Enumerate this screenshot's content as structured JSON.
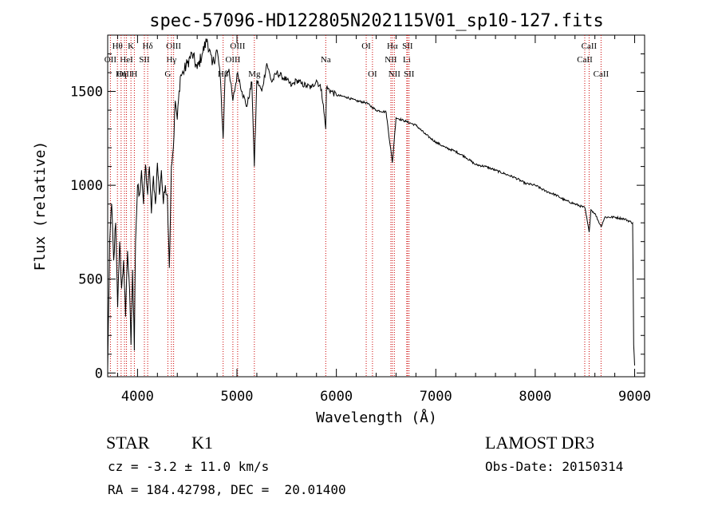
{
  "chart_data": {
    "type": "line",
    "title": "spec-57096-HD122805N202115V01_sp10-127.fits",
    "xlabel": "Wavelength (Å)",
    "ylabel": "Flux (relative)",
    "xlim": [
      3700,
      9100
    ],
    "ylim": [
      -20,
      1800
    ],
    "xticks": [
      4000,
      5000,
      6000,
      7000,
      8000,
      9000
    ],
    "yticks": [
      0,
      500,
      1000,
      1500
    ],
    "line_color": "#000000",
    "marker_color": "#cc0000",
    "series": [
      {
        "name": "flux",
        "x": [
          3700,
          3720,
          3740,
          3760,
          3780,
          3800,
          3820,
          3840,
          3860,
          3880,
          3900,
          3920,
          3934,
          3950,
          3968,
          3980,
          4000,
          4020,
          4040,
          4060,
          4080,
          4102,
          4120,
          4140,
          4160,
          4180,
          4200,
          4220,
          4240,
          4260,
          4280,
          4300,
          4320,
          4340,
          4360,
          4380,
          4400,
          4430,
          4460,
          4500,
          4550,
          4600,
          4650,
          4700,
          4750,
          4800,
          4830,
          4861,
          4880,
          4920,
          4959,
          5007,
          5050,
          5100,
          5150,
          5175,
          5200,
          5250,
          5300,
          5350,
          5400,
          5450,
          5500,
          5550,
          5600,
          5650,
          5700,
          5750,
          5800,
          5850,
          5893,
          5900,
          5950,
          6000,
          6100,
          6200,
          6300,
          6400,
          6500,
          6563,
          6600,
          6700,
          6800,
          6900,
          7000,
          7100,
          7200,
          7300,
          7400,
          7500,
          7600,
          7700,
          7800,
          7900,
          8000,
          8100,
          8200,
          8300,
          8400,
          8500,
          8542,
          8560,
          8600,
          8662,
          8700,
          8800,
          8900,
          8980,
          8990,
          9000
        ],
        "y": [
          20,
          700,
          900,
          600,
          800,
          350,
          700,
          450,
          600,
          300,
          650,
          450,
          150,
          550,
          120,
          700,
          1000,
          950,
          1080,
          900,
          1110,
          950,
          1100,
          850,
          1050,
          900,
          1120,
          950,
          1080,
          900,
          1000,
          950,
          560,
          1100,
          1200,
          1450,
          1350,
          1580,
          1600,
          1650,
          1700,
          1620,
          1700,
          1780,
          1640,
          1720,
          1600,
          1250,
          1580,
          1620,
          1450,
          1600,
          1500,
          1420,
          1550,
          1100,
          1560,
          1500,
          1650,
          1550,
          1600,
          1580,
          1560,
          1530,
          1560,
          1540,
          1530,
          1520,
          1560,
          1510,
          1300,
          1520,
          1500,
          1480,
          1470,
          1450,
          1440,
          1400,
          1390,
          1120,
          1360,
          1340,
          1320,
          1270,
          1230,
          1200,
          1180,
          1150,
          1110,
          1100,
          1080,
          1060,
          1040,
          1010,
          1000,
          970,
          950,
          920,
          900,
          880,
          750,
          870,
          850,
          780,
          830,
          830,
          820,
          800,
          150,
          40
        ]
      }
    ],
    "lines": [
      {
        "label": "Hθ",
        "wavelength": 3798,
        "row": 1
      },
      {
        "label": "OII",
        "wavelength": 3727,
        "row": 2
      },
      {
        "label": "OIII",
        "wavelength": 3869,
        "row": 3
      },
      {
        "label": "K",
        "wavelength": 3934,
        "row": 1
      },
      {
        "label": "HeI",
        "wavelength": 3889,
        "row": 2
      },
      {
        "label": "Hη",
        "wavelength": 3835,
        "row": 3
      },
      {
        "label": "Hδ",
        "wavelength": 4102,
        "row": 1
      },
      {
        "label": "SII",
        "wavelength": 4069,
        "row": 2
      },
      {
        "label": "H",
        "wavelength": 3968,
        "row": 3
      },
      {
        "label": "OIII",
        "wavelength": 4363,
        "row": 1
      },
      {
        "label": "Hγ",
        "wavelength": 4341,
        "row": 2
      },
      {
        "label": "G",
        "wavelength": 4305,
        "row": 3
      },
      {
        "label": "OIII",
        "wavelength": 5007,
        "row": 1
      },
      {
        "label": "OIII",
        "wavelength": 4959,
        "row": 2
      },
      {
        "label": "Hβ",
        "wavelength": 4861,
        "row": 3
      },
      {
        "label": "Mg",
        "wavelength": 5175,
        "row": 3
      },
      {
        "label": "Na",
        "wavelength": 5893,
        "row": 2
      },
      {
        "label": "OI",
        "wavelength": 6300,
        "row": 1
      },
      {
        "label": "OI",
        "wavelength": 6363,
        "row": 3
      },
      {
        "label": "Hα",
        "wavelength": 6563,
        "row": 1
      },
      {
        "label": "SII",
        "wavelength": 6716,
        "row": 1
      },
      {
        "label": "NII",
        "wavelength": 6548,
        "row": 2
      },
      {
        "label": "Li",
        "wavelength": 6708,
        "row": 2
      },
      {
        "label": "NII",
        "wavelength": 6583,
        "row": 3
      },
      {
        "label": "SII",
        "wavelength": 6731,
        "row": 3
      },
      {
        "label": "CaII",
        "wavelength": 8542,
        "row": 1
      },
      {
        "label": "CaII",
        "wavelength": 8498,
        "row": 2
      },
      {
        "label": "CaII",
        "wavelength": 8662,
        "row": 3
      }
    ]
  },
  "info": {
    "object_type": "STAR",
    "subclass": "K1",
    "survey": "LAMOST DR3",
    "redshift": "cz = -3.2 ± 11.0 km/s",
    "obs_date": "Obs-Date: 20150314",
    "coords": "RA = 184.42798, DEC =  20.01400"
  }
}
